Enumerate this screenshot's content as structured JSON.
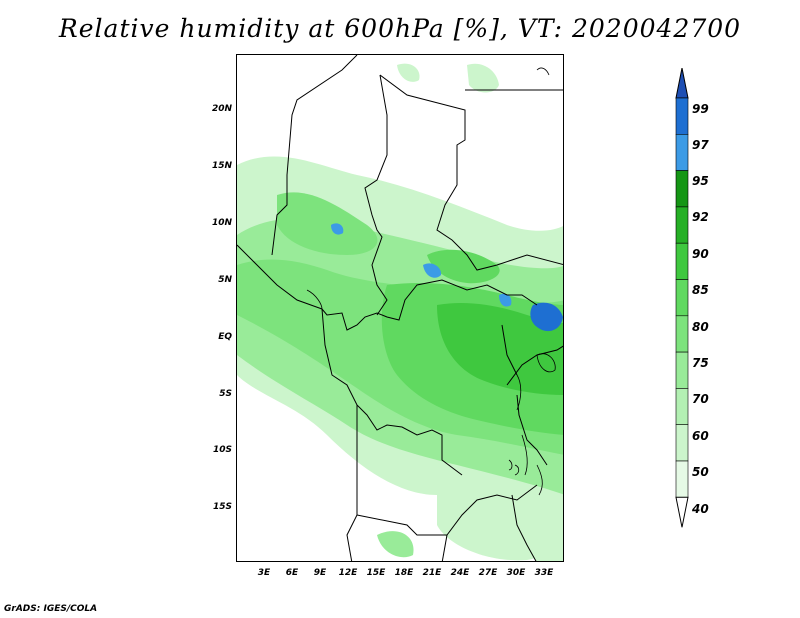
{
  "title": "Relative humidity at 600hPa [%], VT: 2020042700",
  "credit": "GrADS: IGES/COLA",
  "map": {
    "lat_labels": [
      "20N",
      "15N",
      "10N",
      "5N",
      "EQ",
      "5S",
      "10S",
      "15S"
    ],
    "lon_labels": [
      "3E",
      "6E",
      "9E",
      "12E",
      "15E",
      "18E",
      "21E",
      "24E",
      "27E",
      "30E",
      "33E"
    ]
  },
  "colorbar": {
    "levels": [
      "40",
      "50",
      "60",
      "70",
      "75",
      "80",
      "85",
      "90",
      "92",
      "95",
      "97",
      "99"
    ],
    "colors": [
      "#ffffff",
      "#e6fae6",
      "#ccf5cc",
      "#b3f0b3",
      "#99eb99",
      "#7de37d",
      "#60d960",
      "#3fc83f",
      "#26b026",
      "#159615",
      "#3c9be6",
      "#1e6fd2",
      "#1e4fb4"
    ]
  }
}
